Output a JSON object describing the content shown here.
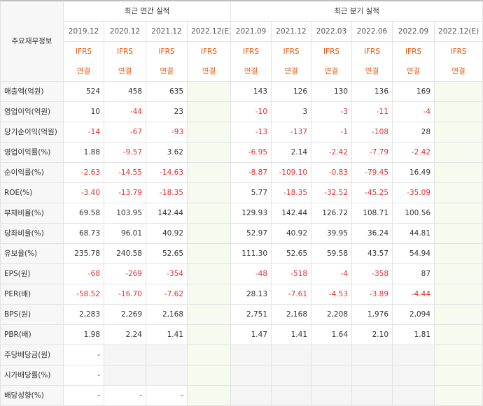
{
  "header": {
    "corner": "주요재무정보",
    "annual_title": "최근 연간 실적",
    "quarter_title": "최근 분기 실적",
    "periods": [
      "2019.12",
      "2020.12",
      "2021.12",
      "2022.12(E)",
      "2021.09",
      "2021.12",
      "2022.03",
      "2022.06",
      "2022.09",
      "2022.12(E)"
    ],
    "ifrs_top": "IFRS",
    "ifrs_bottom": "연결"
  },
  "rows": [
    {
      "label": "매출액(억원)",
      "values": [
        "524",
        "458",
        "635",
        "",
        "143",
        "126",
        "130",
        "136",
        "169",
        ""
      ]
    },
    {
      "label": "영업이익(억원)",
      "values": [
        "10",
        "-44",
        "23",
        "",
        "-10",
        "3",
        "-3",
        "-11",
        "-4",
        ""
      ]
    },
    {
      "label": "당기순이익(억원)",
      "values": [
        "-14",
        "-67",
        "-93",
        "",
        "-13",
        "-137",
        "-1",
        "-108",
        "28",
        ""
      ]
    },
    {
      "label": "영업이익률(%)",
      "values": [
        "1.88",
        "-9.57",
        "3.62",
        "",
        "-6.95",
        "2.14",
        "-2.42",
        "-7.79",
        "-2.42",
        ""
      ]
    },
    {
      "label": "순이익률(%)",
      "values": [
        "-2.63",
        "-14.55",
        "-14.63",
        "",
        "-8.87",
        "-109.10",
        "-0.83",
        "-79.45",
        "16.49",
        ""
      ]
    },
    {
      "label": "ROE(%)",
      "values": [
        "-3.40",
        "-13.79",
        "-18.35",
        "",
        "5.77",
        "-18.35",
        "-32.52",
        "-45.25",
        "-35.09",
        ""
      ]
    },
    {
      "label": "부채비율(%)",
      "values": [
        "69.58",
        "103.95",
        "142.44",
        "",
        "129.93",
        "142.44",
        "126.72",
        "108.71",
        "100.56",
        ""
      ]
    },
    {
      "label": "당좌비율(%)",
      "values": [
        "68.73",
        "96.01",
        "40.92",
        "",
        "52.97",
        "40.92",
        "39.95",
        "36.24",
        "44.81",
        ""
      ]
    },
    {
      "label": "유보율(%)",
      "values": [
        "235.78",
        "240.58",
        "52.65",
        "",
        "111.30",
        "52.65",
        "59.58",
        "43.57",
        "54.94",
        ""
      ]
    },
    {
      "label": "EPS(원)",
      "values": [
        "-68",
        "-269",
        "-354",
        "",
        "-48",
        "-518",
        "-4",
        "-358",
        "87",
        ""
      ]
    },
    {
      "label": "PER(배)",
      "values": [
        "-58.52",
        "-16.70",
        "-7.62",
        "",
        "28.13",
        "-7.61",
        "-4.53",
        "-3.89",
        "-4.44",
        ""
      ]
    },
    {
      "label": "BPS(원)",
      "values": [
        "2,283",
        "2,269",
        "2,168",
        "",
        "2,751",
        "2,168",
        "2,208",
        "1,976",
        "2,094",
        ""
      ]
    },
    {
      "label": "PBR(배)",
      "values": [
        "1.98",
        "2.24",
        "1.41",
        "",
        "1.47",
        "1.41",
        "1.64",
        "2.10",
        "1.81",
        ""
      ]
    },
    {
      "label": "주당배당금(원)",
      "values": [
        "-",
        "",
        "",
        "",
        "",
        "",
        "",
        "",
        "",
        ""
      ]
    },
    {
      "label": "시가배당률(%)",
      "values": [
        "-",
        "",
        "",
        "",
        "",
        "",
        "",
        "",
        "",
        ""
      ]
    },
    {
      "label": "배당성향(%)",
      "values": [
        "-",
        "-",
        "-",
        "",
        "",
        "",
        "",
        "",
        "",
        ""
      ]
    }
  ]
}
